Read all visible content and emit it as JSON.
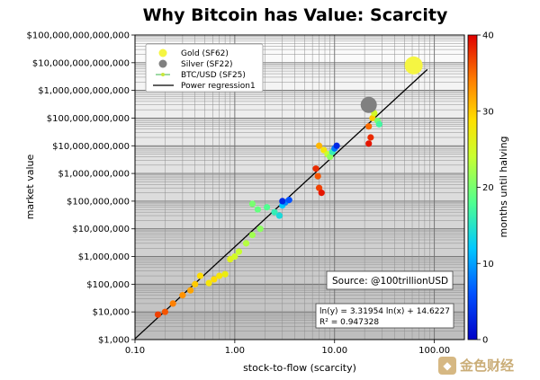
{
  "chart_data": {
    "type": "scatter",
    "title": "Why Bitcoin has Value: Scarcity",
    "xlabel": "stock-to-flow (scarcity)",
    "ylabel": "market value",
    "xscale": "log",
    "yscale": "log",
    "xlim": [
      0.1,
      200
    ],
    "ylim": [
      1000,
      100000000000000
    ],
    "x_ticks": [
      "0.10",
      "1.00",
      "10.00",
      "100.00"
    ],
    "y_ticks": [
      "$1,000",
      "$10,000",
      "$100,000",
      "$1,000,000",
      "$10,000,000",
      "$100,000,000",
      "$1,000,000,000",
      "$10,000,000,000",
      "$100,000,000,000",
      "$1,000,000,000,000",
      "$10,000,000,000,000",
      "$100,000,000,000,000"
    ],
    "grid": true,
    "legend_position": "top-left",
    "legend": [
      "Gold (SF62)",
      "Silver (SF22)",
      "BTC/USD (SF25)",
      "Power regression1"
    ],
    "colorbar": {
      "label": "months until halving",
      "min": 0,
      "max": 40,
      "ticks": [
        "0",
        "10",
        "20",
        "30",
        "40"
      ]
    },
    "source_text": "Source: @100trillionUSD",
    "regression": {
      "line1": "ln(y) = 3.31954 ln(x) + 14.6227",
      "line2": "R² = 0.947328",
      "a": 3.31954,
      "b": 14.6227
    },
    "reference_points": [
      {
        "name": "Gold (SF62)",
        "sf": 62,
        "value": 8000000000000,
        "color": "#f5f542"
      },
      {
        "name": "Silver (SF22)",
        "sf": 22,
        "value": 300000000000,
        "color": "#808080"
      }
    ],
    "series": [
      {
        "name": "BTC/USD (SF25)",
        "points": [
          {
            "sf": 0.17,
            "value": 8000,
            "months": 37
          },
          {
            "sf": 0.2,
            "value": 10000,
            "months": 36
          },
          {
            "sf": 0.24,
            "value": 20000,
            "months": 34
          },
          {
            "sf": 0.3,
            "value": 40000,
            "months": 33
          },
          {
            "sf": 0.36,
            "value": 60000,
            "months": 32
          },
          {
            "sf": 0.4,
            "value": 100000,
            "months": 30
          },
          {
            "sf": 0.45,
            "value": 200000,
            "months": 29
          },
          {
            "sf": 0.55,
            "value": 110000,
            "months": 28
          },
          {
            "sf": 0.62,
            "value": 150000,
            "months": 29
          },
          {
            "sf": 0.7,
            "value": 200000,
            "months": 28
          },
          {
            "sf": 0.8,
            "value": 230000,
            "months": 27
          },
          {
            "sf": 0.9,
            "value": 800000,
            "months": 26
          },
          {
            "sf": 1.0,
            "value": 1000000,
            "months": 25
          },
          {
            "sf": 1.1,
            "value": 1500000,
            "months": 24
          },
          {
            "sf": 1.3,
            "value": 3000000,
            "months": 23
          },
          {
            "sf": 1.5,
            "value": 6000000,
            "months": 22
          },
          {
            "sf": 1.8,
            "value": 10000000,
            "months": 21
          },
          {
            "sf": 1.7,
            "value": 50000000,
            "months": 19
          },
          {
            "sf": 1.5,
            "value": 80000000,
            "months": 20
          },
          {
            "sf": 2.1,
            "value": 60000000,
            "months": 18
          },
          {
            "sf": 2.5,
            "value": 40000000,
            "months": 16
          },
          {
            "sf": 2.8,
            "value": 30000000,
            "months": 14
          },
          {
            "sf": 3.0,
            "value": 70000000,
            "months": 12
          },
          {
            "sf": 3.2,
            "value": 90000000,
            "months": 9
          },
          {
            "sf": 3.5,
            "value": 110000000,
            "months": 6
          },
          {
            "sf": 3.0,
            "value": 100000000,
            "months": 3
          },
          {
            "sf": 6.5,
            "value": 1500000000,
            "months": 38
          },
          {
            "sf": 6.8,
            "value": 800000000,
            "months": 36
          },
          {
            "sf": 7.0,
            "value": 300000000,
            "months": 37
          },
          {
            "sf": 7.4,
            "value": 200000000,
            "months": 39
          },
          {
            "sf": 7.0,
            "value": 10000000000,
            "months": 31
          },
          {
            "sf": 7.8,
            "value": 7000000000,
            "months": 28
          },
          {
            "sf": 8.5,
            "value": 5000000000,
            "months": 24
          },
          {
            "sf": 9.0,
            "value": 4000000000,
            "months": 21
          },
          {
            "sf": 9.5,
            "value": 6000000000,
            "months": 16
          },
          {
            "sf": 10.0,
            "value": 8000000000,
            "months": 8
          },
          {
            "sf": 10.5,
            "value": 10000000000,
            "months": 3
          },
          {
            "sf": 22,
            "value": 12000000000,
            "months": 39
          },
          {
            "sf": 23,
            "value": 20000000000,
            "months": 38
          },
          {
            "sf": 22,
            "value": 50000000000,
            "months": 35
          },
          {
            "sf": 24,
            "value": 100000000000,
            "months": 30
          },
          {
            "sf": 25,
            "value": 150000000000,
            "months": 25
          },
          {
            "sf": 27,
            "value": 80000000000,
            "months": 20
          },
          {
            "sf": 28,
            "value": 60000000000,
            "months": 17
          }
        ]
      }
    ]
  }
}
